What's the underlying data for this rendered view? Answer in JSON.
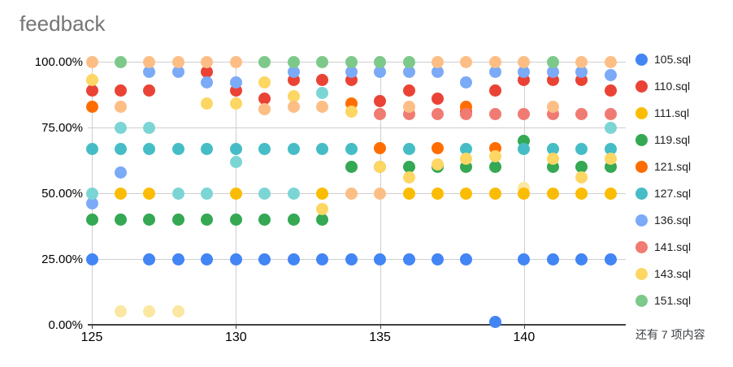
{
  "title": "feedback",
  "chart_data": {
    "type": "scatter",
    "title": "feedback",
    "x_axis": {
      "min": 124.5,
      "max": 143.6,
      "ticks": [
        {
          "label": "125",
          "value": 125
        },
        {
          "label": "130",
          "value": 130
        },
        {
          "label": "135",
          "value": 135
        },
        {
          "label": "140",
          "value": 140
        }
      ]
    },
    "y_axis": {
      "min": 0,
      "max": 100,
      "ticks": [
        {
          "label": "0.00%",
          "value": 0
        },
        {
          "label": "25.00%",
          "value": 25
        },
        {
          "label": "50.00%",
          "value": 50
        },
        {
          "label": "75.00%",
          "value": 75
        },
        {
          "label": "100.00%",
          "value": 100
        }
      ]
    },
    "legend": {
      "position": "right",
      "more_label": "还有 7 项内容"
    },
    "series": [
      {
        "id": "extra-pale-yellow",
        "name": "",
        "color": "#FBE7A1",
        "in_legend": false,
        "points": [
          [
            126,
            5
          ],
          [
            127,
            5
          ],
          [
            128,
            5
          ],
          [
            140,
            52
          ]
        ]
      },
      {
        "id": "105",
        "name": "105.sql",
        "color": "#4285F4",
        "in_legend": true,
        "points": [
          [
            125,
            25
          ],
          [
            127,
            25
          ],
          [
            128,
            25
          ],
          [
            129,
            25
          ],
          [
            130,
            25
          ],
          [
            131,
            25
          ],
          [
            132,
            25
          ],
          [
            133,
            25
          ],
          [
            134,
            25
          ],
          [
            135,
            25
          ],
          [
            136,
            25
          ],
          [
            137,
            25
          ],
          [
            138,
            25
          ],
          [
            139,
            1
          ],
          [
            140,
            25
          ],
          [
            141,
            25
          ],
          [
            142,
            25
          ],
          [
            143,
            25
          ]
        ]
      },
      {
        "id": "110",
        "name": "110.sql",
        "color": "#EA4335",
        "in_legend": true,
        "points": [
          [
            125,
            89
          ],
          [
            126,
            89
          ],
          [
            127,
            89
          ],
          [
            129,
            96
          ],
          [
            130,
            89
          ],
          [
            131,
            86
          ],
          [
            132,
            93
          ],
          [
            133,
            93
          ],
          [
            134,
            93
          ],
          [
            135,
            85
          ],
          [
            136,
            89
          ],
          [
            137,
            86
          ],
          [
            138,
            81
          ],
          [
            139,
            89
          ],
          [
            140,
            93
          ],
          [
            141,
            93
          ],
          [
            142,
            93
          ],
          [
            143,
            89
          ]
        ]
      },
      {
        "id": "111",
        "name": "111.sql",
        "color": "#FBBC04",
        "in_legend": true,
        "points": [
          [
            126,
            50
          ],
          [
            127,
            50
          ],
          [
            130,
            50
          ],
          [
            133,
            50
          ],
          [
            136,
            50
          ],
          [
            137,
            50
          ],
          [
            138,
            50
          ],
          [
            139,
            50
          ],
          [
            140,
            50
          ],
          [
            141,
            50
          ],
          [
            142,
            50
          ],
          [
            143,
            50
          ]
        ]
      },
      {
        "id": "119",
        "name": "119.sql",
        "color": "#34A853",
        "in_legend": true,
        "points": [
          [
            125,
            40
          ],
          [
            126,
            40
          ],
          [
            127,
            40
          ],
          [
            128,
            40
          ],
          [
            129,
            40
          ],
          [
            130,
            40
          ],
          [
            131,
            40
          ],
          [
            132,
            40
          ],
          [
            133,
            40
          ],
          [
            134,
            60
          ],
          [
            135,
            60
          ],
          [
            136,
            60
          ],
          [
            137,
            60
          ],
          [
            138,
            60
          ],
          [
            139,
            60
          ],
          [
            140,
            70
          ],
          [
            141,
            60
          ],
          [
            142,
            60
          ],
          [
            143,
            60
          ]
        ]
      },
      {
        "id": "121",
        "name": "121.sql",
        "color": "#FF6D01",
        "in_legend": true,
        "points": [
          [
            125,
            83
          ],
          [
            134,
            84
          ],
          [
            135,
            67
          ],
          [
            137,
            67
          ],
          [
            138,
            83
          ],
          [
            139,
            67
          ]
        ]
      },
      {
        "id": "127",
        "name": "127.sql",
        "color": "#46BDC6",
        "in_legend": true,
        "points": [
          [
            125,
            66.7
          ],
          [
            126,
            66.7
          ],
          [
            127,
            66.7
          ],
          [
            128,
            66.7
          ],
          [
            129,
            66.7
          ],
          [
            130,
            66.7
          ],
          [
            131,
            66.7
          ],
          [
            132,
            66.7
          ],
          [
            133,
            66.7
          ],
          [
            134,
            66.7
          ],
          [
            136,
            66.7
          ],
          [
            138,
            66.7
          ],
          [
            140,
            66.7
          ],
          [
            141,
            66.7
          ],
          [
            142,
            66.7
          ],
          [
            143,
            66.7
          ]
        ]
      },
      {
        "id": "136",
        "name": "136.sql",
        "color": "#7BAAF7",
        "in_legend": true,
        "points": [
          [
            125,
            46
          ],
          [
            126,
            58
          ],
          [
            127,
            96
          ],
          [
            128,
            96
          ],
          [
            129,
            92
          ],
          [
            130,
            92
          ],
          [
            132,
            96
          ],
          [
            134,
            96
          ],
          [
            135,
            96
          ],
          [
            136,
            96
          ],
          [
            137,
            96
          ],
          [
            138,
            92
          ],
          [
            139,
            96
          ],
          [
            140,
            96
          ],
          [
            141,
            96
          ],
          [
            142,
            96
          ],
          [
            143,
            95
          ]
        ]
      },
      {
        "id": "141",
        "name": "141.sql",
        "color": "#F07B72",
        "in_legend": true,
        "points": [
          [
            135,
            80
          ],
          [
            136,
            80
          ],
          [
            137,
            80
          ],
          [
            138,
            80
          ],
          [
            139,
            80
          ],
          [
            140,
            80
          ],
          [
            141,
            80
          ],
          [
            142,
            80
          ],
          [
            143,
            80
          ]
        ]
      },
      {
        "id": "143",
        "name": "143.sql",
        "color": "#FDD663",
        "in_legend": true,
        "points": [
          [
            125,
            93
          ],
          [
            129,
            84
          ],
          [
            130,
            84
          ],
          [
            131,
            92
          ],
          [
            132,
            87
          ],
          [
            133,
            44
          ],
          [
            134,
            81
          ],
          [
            135,
            60
          ],
          [
            136,
            56
          ],
          [
            137,
            61
          ],
          [
            138,
            63
          ],
          [
            139,
            64
          ],
          [
            141,
            63
          ],
          [
            142,
            56
          ],
          [
            143,
            63
          ]
        ]
      },
      {
        "id": "151",
        "name": "151.sql",
        "color": "#7DC98A",
        "in_legend": true,
        "points": [
          [
            126,
            100
          ],
          [
            131,
            100
          ],
          [
            132,
            100
          ],
          [
            133,
            100
          ],
          [
            134,
            100
          ],
          [
            135,
            100
          ],
          [
            136,
            100
          ],
          [
            141,
            100
          ]
        ]
      },
      {
        "id": "extra-peach",
        "name": "",
        "color": "#FDBE85",
        "in_legend": false,
        "points": [
          [
            125,
            100
          ],
          [
            126,
            83
          ],
          [
            127,
            100
          ],
          [
            128,
            100
          ],
          [
            129,
            100
          ],
          [
            130,
            100
          ],
          [
            131,
            82
          ],
          [
            132,
            83
          ],
          [
            133,
            83
          ],
          [
            134,
            50
          ],
          [
            135,
            50
          ],
          [
            136,
            83
          ],
          [
            137,
            100
          ],
          [
            138,
            100
          ],
          [
            139,
            100
          ],
          [
            140,
            100
          ],
          [
            141,
            83
          ],
          [
            142,
            100
          ],
          [
            143,
            100
          ]
        ]
      },
      {
        "id": "extra-light-teal",
        "name": "",
        "color": "#7CD5D5",
        "in_legend": false,
        "points": [
          [
            125,
            50
          ],
          [
            126,
            75
          ],
          [
            127,
            75
          ],
          [
            128,
            50
          ],
          [
            129,
            50
          ],
          [
            130,
            62
          ],
          [
            131,
            50
          ],
          [
            132,
            50
          ],
          [
            133,
            88
          ],
          [
            143,
            75
          ]
        ]
      }
    ]
  }
}
